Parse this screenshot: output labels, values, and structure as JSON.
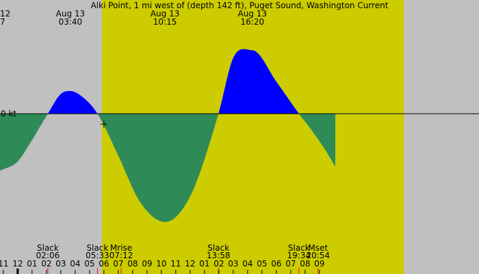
{
  "chart_data": {
    "type": "area",
    "title": "Alki Point, 1 mi west of (depth 142 ft), Puget Sound, Washington Current",
    "y_reference_label": "0 kt",
    "x_unit": "hours",
    "x_range": [
      -1.23,
      32.1
    ],
    "y_range": [
      -1.8,
      1.9
    ],
    "colors": {
      "night_background": "#c0c0c0",
      "day_background": "#cccc00",
      "flood": "#0000ff",
      "ebb": "#2e8b57",
      "tick_line": "#000000",
      "event_tick": "#ff0000"
    },
    "daylight": {
      "start": 5.85,
      "end": 26.88
    },
    "peaks": [
      {
        "date": "Aug 13",
        "time": "03:40",
        "x": 3.67,
        "kind": "max flood"
      },
      {
        "date": "Aug 13",
        "time": "10:15",
        "x": 10.25,
        "kind": "max ebb"
      },
      {
        "date": "Aug 13",
        "time": "16:20",
        "x": 16.33,
        "kind": "max flood"
      }
    ],
    "left_edge_peak": {
      "date": "12",
      "time": "7"
    },
    "current_points": [
      {
        "x": -1.23,
        "y": -0.98
      },
      {
        "x": 0.0,
        "y": -0.82
      },
      {
        "x": 1.0,
        "y": -0.45
      },
      {
        "x": 2.1,
        "y": 0.0
      },
      {
        "x": 3.0,
        "y": 0.34
      },
      {
        "x": 3.67,
        "y": 0.39
      },
      {
        "x": 4.5,
        "y": 0.29
      },
      {
        "x": 5.55,
        "y": 0.0
      },
      {
        "x": 7.0,
        "y": -0.72
      },
      {
        "x": 8.5,
        "y": -1.51
      },
      {
        "x": 10.25,
        "y": -1.86
      },
      {
        "x": 12.0,
        "y": -1.42
      },
      {
        "x": 13.97,
        "y": 0.0
      },
      {
        "x": 15.0,
        "y": 0.96
      },
      {
        "x": 16.33,
        "y": 1.09
      },
      {
        "x": 18.0,
        "y": 0.55
      },
      {
        "x": 19.57,
        "y": 0.0
      },
      {
        "x": 20.5,
        "y": -0.3
      },
      {
        "x": 21.5,
        "y": -0.66
      },
      {
        "x": 22.1,
        "y": -0.91
      }
    ],
    "cursor": {
      "x": 6.0,
      "y": -0.18
    },
    "events": [
      {
        "label": "Slack",
        "time": "02:06",
        "x": 2.1
      },
      {
        "label": "Slack",
        "time": "05:33",
        "x": 5.55
      },
      {
        "label": "Mrise",
        "time": "07:12",
        "x": 7.2
      },
      {
        "label": "Slack",
        "time": "13:58",
        "x": 13.97
      },
      {
        "label": "Slack",
        "time": "19:34",
        "x": 19.57
      },
      {
        "label": "Mset",
        "time": "20:54",
        "x": 20.9
      }
    ],
    "hour_ticks": [
      {
        "label": "11",
        "x": -1
      },
      {
        "label": "12",
        "x": 0,
        "midnight": true
      },
      {
        "label": "01",
        "x": 1
      },
      {
        "label": "02",
        "x": 2
      },
      {
        "label": "03",
        "x": 3
      },
      {
        "label": "04",
        "x": 4
      },
      {
        "label": "05",
        "x": 5
      },
      {
        "label": "06",
        "x": 6
      },
      {
        "label": "07",
        "x": 7
      },
      {
        "label": "08",
        "x": 8
      },
      {
        "label": "09",
        "x": 9
      },
      {
        "label": "10",
        "x": 10
      },
      {
        "label": "11",
        "x": 11
      },
      {
        "label": "12",
        "x": 12
      },
      {
        "label": "01",
        "x": 13
      },
      {
        "label": "02",
        "x": 14
      },
      {
        "label": "03",
        "x": 15
      },
      {
        "label": "04",
        "x": 16
      },
      {
        "label": "05",
        "x": 17
      },
      {
        "label": "06",
        "x": 18
      },
      {
        "label": "07",
        "x": 19
      },
      {
        "label": "08",
        "x": 20
      },
      {
        "label": "09",
        "x": 21
      }
    ],
    "grid": false,
    "legend": "none"
  }
}
